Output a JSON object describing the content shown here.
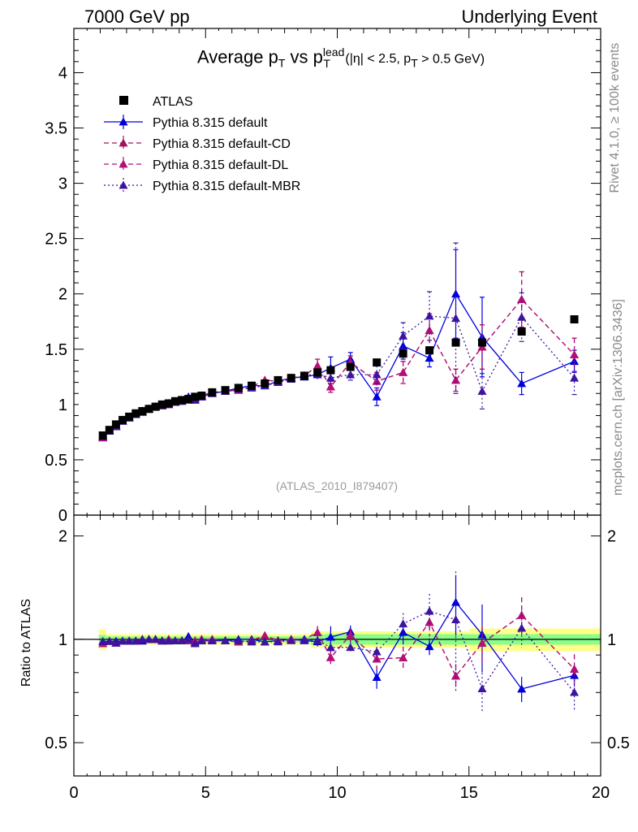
{
  "header": {
    "left": "7000 GeV pp",
    "right": "Underlying Event"
  },
  "side_texts": {
    "rivet": "Rivet 4.1.0, ≥ 100k events",
    "mcplots": "mcplots.cern.ch [arXiv:1306.3436]"
  },
  "title": {
    "main": "Average p",
    "sub1": "T",
    "vs": " vs p",
    "sup": "lead",
    "sub2": "T",
    "cuts_a": " (|η| < 2.5, p",
    "cuts_sub": "T",
    "cuts_b": " > 0.5 GeV)"
  },
  "watermark": "(ATLAS_2010_I879407)",
  "ratio_ylabel": "Ratio to ATLAS",
  "colors": {
    "atlas": "#000000",
    "default": "#0000dd",
    "cd": "#a0145a",
    "dl": "#b40f78",
    "mbr": "#3c14a0",
    "band_yellow": "#ffff88",
    "band_green": "#88ff88"
  },
  "chart_data": {
    "type": "scatter",
    "xlim": [
      0,
      20
    ],
    "main_ylim": [
      0,
      4.4
    ],
    "ratio_ylim": [
      0.4,
      2.3
    ],
    "x_ticks": [
      0,
      5,
      10,
      15,
      20
    ],
    "main_y_ticks": [
      0,
      0.5,
      1,
      1.5,
      2,
      2.5,
      3,
      3.5,
      4
    ],
    "ratio_y_ticks": [
      0.5,
      1,
      2
    ],
    "legend": [
      "ATLAS",
      "Pythia 8.315 default",
      "Pythia 8.315 default-CD",
      "Pythia 8.315 default-DL",
      "Pythia 8.315 default-MBR"
    ],
    "x": [
      1.1,
      1.35,
      1.6,
      1.85,
      2.1,
      2.35,
      2.6,
      2.85,
      3.1,
      3.35,
      3.6,
      3.85,
      4.1,
      4.35,
      4.6,
      4.85,
      5.25,
      5.75,
      6.25,
      6.75,
      7.25,
      7.75,
      8.25,
      8.75,
      9.25,
      9.75,
      10.5,
      11.5,
      12.5,
      13.5,
      14.5,
      15.5,
      17.0,
      19.0
    ],
    "atlas": [
      0.72,
      0.77,
      0.82,
      0.86,
      0.89,
      0.92,
      0.94,
      0.96,
      0.98,
      1.0,
      1.01,
      1.03,
      1.04,
      1.05,
      1.07,
      1.08,
      1.11,
      1.13,
      1.15,
      1.17,
      1.19,
      1.22,
      1.24,
      1.26,
      1.29,
      1.31,
      1.34,
      1.38,
      1.46,
      1.49,
      1.56,
      1.56,
      1.66,
      1.77
    ],
    "series": [
      {
        "name": "Pythia 8.315 default",
        "style": "solid",
        "values": [
          0.71,
          0.76,
          0.81,
          0.85,
          0.88,
          0.91,
          0.93,
          0.96,
          0.98,
          0.99,
          1.0,
          1.02,
          1.03,
          1.07,
          1.05,
          1.07,
          1.1,
          1.12,
          1.15,
          1.17,
          1.17,
          1.21,
          1.24,
          1.25,
          1.27,
          1.33,
          1.41,
          1.07,
          1.53,
          1.42,
          2.0,
          1.61,
          1.19,
          1.39
        ],
        "errors": [
          0.01,
          0.01,
          0.01,
          0.01,
          0.01,
          0.01,
          0.01,
          0.01,
          0.01,
          0.01,
          0.01,
          0.01,
          0.01,
          0.01,
          0.01,
          0.01,
          0.01,
          0.01,
          0.02,
          0.02,
          0.02,
          0.02,
          0.03,
          0.03,
          0.04,
          0.1,
          0.06,
          0.08,
          0.12,
          0.08,
          0.4,
          0.36,
          0.1,
          0.1
        ]
      },
      {
        "name": "Pythia 8.315 default-CD",
        "style": "dashed",
        "values": [
          0.7,
          0.76,
          0.8,
          0.85,
          0.88,
          0.91,
          0.94,
          0.96,
          0.98,
          0.99,
          1.01,
          1.02,
          1.03,
          1.04,
          1.06,
          1.08,
          1.11,
          1.12,
          1.13,
          1.16,
          1.22,
          1.21,
          1.24,
          1.26,
          1.35,
          1.16,
          1.38,
          1.21,
          1.29,
          1.67,
          1.22,
          1.52,
          1.95,
          1.45
        ],
        "errors": [
          0.01,
          0.01,
          0.01,
          0.01,
          0.01,
          0.01,
          0.01,
          0.01,
          0.01,
          0.01,
          0.01,
          0.01,
          0.01,
          0.01,
          0.01,
          0.01,
          0.01,
          0.01,
          0.02,
          0.02,
          0.02,
          0.02,
          0.03,
          0.03,
          0.06,
          0.05,
          0.06,
          0.08,
          0.1,
          0.15,
          0.1,
          0.2,
          0.25,
          0.15
        ]
      },
      {
        "name": "Pythia 8.315 default-DL",
        "style": "dashed",
        "values": [
          0.7,
          0.76,
          0.8,
          0.85,
          0.88,
          0.91,
          0.94,
          0.96,
          0.98,
          0.99,
          1.01,
          1.02,
          1.03,
          1.04,
          1.06,
          1.08,
          1.11,
          1.12,
          1.13,
          1.16,
          1.22,
          1.21,
          1.24,
          1.26,
          1.35,
          1.16,
          1.38,
          1.21,
          1.29,
          1.67,
          1.22,
          1.52,
          1.95,
          1.45
        ],
        "errors": [
          0.01,
          0.01,
          0.01,
          0.01,
          0.01,
          0.01,
          0.01,
          0.01,
          0.01,
          0.01,
          0.01,
          0.01,
          0.01,
          0.01,
          0.01,
          0.01,
          0.01,
          0.01,
          0.02,
          0.02,
          0.02,
          0.02,
          0.03,
          0.03,
          0.06,
          0.05,
          0.06,
          0.08,
          0.1,
          0.15,
          0.1,
          0.2,
          0.25,
          0.15
        ]
      },
      {
        "name": "Pythia 8.315 default-MBR",
        "style": "dotted",
        "values": [
          0.71,
          0.76,
          0.8,
          0.85,
          0.88,
          0.91,
          0.94,
          0.96,
          0.98,
          0.99,
          1.0,
          1.02,
          1.03,
          1.05,
          1.04,
          1.07,
          1.1,
          1.12,
          1.14,
          1.15,
          1.17,
          1.2,
          1.23,
          1.26,
          1.28,
          1.24,
          1.27,
          1.27,
          1.62,
          1.8,
          1.78,
          1.12,
          1.79,
          1.24
        ],
        "errors": [
          0.01,
          0.01,
          0.01,
          0.01,
          0.01,
          0.01,
          0.01,
          0.01,
          0.01,
          0.01,
          0.01,
          0.01,
          0.01,
          0.01,
          0.01,
          0.01,
          0.01,
          0.01,
          0.02,
          0.02,
          0.02,
          0.02,
          0.03,
          0.03,
          0.04,
          0.05,
          0.05,
          0.08,
          0.12,
          0.22,
          0.68,
          0.16,
          0.22,
          0.15
        ]
      }
    ]
  }
}
